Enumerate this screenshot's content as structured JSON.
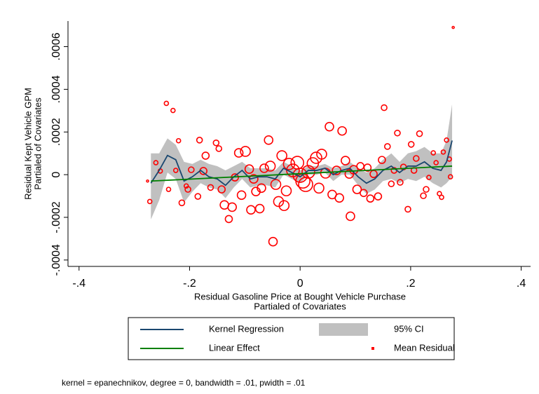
{
  "chart_data": {
    "type": "scatter",
    "x_label": [
      "Residual Gasoline Price at Bought Vehicle Purchase",
      "Partialed of Covariates"
    ],
    "y_label": [
      "Residual Kept Vehicle GPM",
      "Partialed of Covariates"
    ],
    "note": "kernel = epanechnikov, degree = 0, bandwidth = .01, pwidth = .01",
    "xlim": [
      -0.42,
      0.417
    ],
    "ylim": [
      -0.00043,
      0.00072
    ],
    "xticks": [
      {
        "value": -0.4,
        "label": "-.4"
      },
      {
        "value": -0.2,
        "label": "-.2"
      },
      0,
      {
        "value": 0.2,
        "label": ".2"
      },
      {
        "value": 0.4,
        "label": ".4"
      }
    ],
    "yticks": [
      {
        "value": -0.0004,
        "label": "-.0004"
      },
      {
        "value": -0.0002,
        "label": "-.0002"
      },
      0,
      {
        "value": 0.0002,
        "label": ".0002"
      },
      {
        "value": 0.0004,
        "label": ".0004"
      },
      {
        "value": 0.0006,
        "label": ".0006"
      }
    ],
    "ci_band": {
      "name": "95% CI",
      "color": "#c0c0c0",
      "x": [
        -0.27,
        -0.255,
        -0.24,
        -0.225,
        -0.21,
        -0.195,
        -0.18,
        -0.165,
        -0.15,
        -0.135,
        -0.12,
        -0.105,
        -0.09,
        -0.075,
        -0.06,
        -0.045,
        -0.03,
        -0.015,
        0,
        0.015,
        0.03,
        0.045,
        0.06,
        0.075,
        0.09,
        0.105,
        0.12,
        0.135,
        0.15,
        0.165,
        0.18,
        0.195,
        0.21,
        0.225,
        0.24,
        0.255,
        0.265,
        0.275
      ],
      "upper": [
        0.0001,
        0.0001,
        0.00017,
        0.00014,
        6e-05,
        5e-05,
        7e-05,
        5e-05,
        4e-05,
        2e-05,
        4e-05,
        6e-05,
        3e-05,
        3e-05,
        3e-05,
        2e-05,
        6e-05,
        4e-05,
        2e-05,
        4e-05,
        4e-05,
        5e-05,
        3e-05,
        4e-05,
        6e-05,
        3e-05,
        1e-05,
        3e-05,
        7e-05,
        0.0001,
        6e-05,
        0.0001,
        0.00011,
        0.00013,
        0.0001,
        0.0001,
        0.00016,
        0.00033
      ],
      "lower": [
        -0.00021,
        -0.00012,
        1e-05,
        -2e-05,
        -0.00013,
        -8e-05,
        -4e-05,
        -6e-05,
        -7e-05,
        -0.00011,
        -6e-05,
        -2e-05,
        -6e-05,
        -5e-05,
        -5e-05,
        -6e-05,
        0,
        -2e-05,
        -4e-05,
        0,
        0,
        1e-05,
        -3e-05,
        0,
        0,
        -5e-05,
        -9e-05,
        -7e-05,
        -3e-05,
        -2e-05,
        -4e-05,
        -2e-05,
        -3e-05,
        -1e-05,
        -4e-05,
        -6e-05,
        -4e-05,
        -1e-05
      ]
    },
    "series": [
      {
        "name": "Kernel Regression",
        "color": "#1a476f",
        "x": [
          -0.27,
          -0.255,
          -0.24,
          -0.225,
          -0.21,
          -0.195,
          -0.18,
          -0.165,
          -0.15,
          -0.135,
          -0.12,
          -0.105,
          -0.09,
          -0.075,
          -0.06,
          -0.045,
          -0.03,
          -0.015,
          0,
          0.015,
          0.03,
          0.045,
          0.06,
          0.075,
          0.09,
          0.105,
          0.12,
          0.135,
          0.15,
          0.165,
          0.18,
          0.195,
          0.21,
          0.225,
          0.24,
          0.255,
          0.265,
          0.275
        ],
        "values": [
          -4e-05,
          2e-05,
          9e-05,
          7e-05,
          -3e-05,
          -1e-05,
          2e-05,
          -1e-05,
          -2e-05,
          -5e-05,
          -1e-05,
          2e-05,
          -2e-05,
          -1e-05,
          -1e-05,
          -2e-05,
          3e-05,
          1e-05,
          -1e-05,
          2e-05,
          2e-05,
          3e-05,
          0,
          2e-05,
          3e-05,
          -1e-05,
          -4e-05,
          -2e-05,
          2e-05,
          4e-05,
          1e-05,
          4e-05,
          4e-05,
          6e-05,
          3e-05,
          2e-05,
          6e-05,
          0.00016
        ]
      },
      {
        "name": "Linear Effect",
        "color": "#008000",
        "x": [
          -0.27,
          0.275
        ],
        "values": [
          -3e-05,
          4e-05
        ]
      },
      {
        "name": "Mean Residual",
        "color": "#ff0000",
        "x": [
          -0.272,
          -0.261,
          -0.253,
          -0.242,
          -0.23,
          -0.238,
          -0.225,
          -0.22,
          -0.214,
          -0.206,
          -0.203,
          -0.197,
          -0.185,
          -0.182,
          -0.175,
          -0.171,
          -0.162,
          -0.152,
          -0.147,
          -0.142,
          -0.137,
          -0.129,
          -0.123,
          -0.118,
          -0.111,
          -0.106,
          -0.099,
          -0.092,
          -0.089,
          -0.084,
          -0.08,
          -0.073,
          -0.07,
          -0.065,
          -0.057,
          -0.054,
          -0.049,
          -0.044,
          -0.039,
          -0.033,
          -0.029,
          -0.025,
          -0.02,
          -0.013,
          -0.005,
          0,
          0.005,
          0.01,
          0.015,
          0.023,
          0.029,
          0.034,
          0.039,
          0.046,
          0.053,
          0.058,
          0.066,
          0.071,
          0.076,
          0.082,
          0.089,
          0.091,
          0.097,
          0.103,
          0.109,
          0.115,
          0.122,
          0.127,
          0.133,
          0.141,
          0.148,
          0.152,
          0.158,
          0.165,
          0.17,
          0.176,
          0.181,
          0.187,
          0.195,
          0.201,
          0.206,
          0.21,
          0.216,
          0.223,
          0.228,
          0.233,
          0.241,
          0.246,
          0.252,
          0.256,
          0.259,
          0.265,
          0.27,
          0.272,
          0.277,
          -0.276
        ],
        "values": [
          -0.000126,
          5.6e-05,
          1.7e-05,
          0.000334,
          0.000301,
          -6.9e-05,
          2e-05,
          0.000159,
          -0.000132,
          -5.3e-05,
          -6.9e-05,
          2.3e-05,
          -0.000102,
          0.000162,
          1.7e-05,
          8.9e-05,
          -6e-05,
          0.000149,
          0.000122,
          -6.9e-05,
          -0.000142,
          -0.000208,
          -0.000152,
          -1.3e-05,
          0.000102,
          -9.6e-05,
          0.000109,
          2.6e-05,
          -0.000165,
          -2e-05,
          -7.9e-05,
          -0.000159,
          -6.3e-05,
          3e-05,
          0.000162,
          4e-05,
          -0.000314,
          -4.6e-05,
          -0.000126,
          8.9e-05,
          -0.000145,
          -7.6e-05,
          5e-05,
          2e-05,
          5.6e-05,
          -3e-06,
          -3e-05,
          -4.6e-05,
          1.3e-05,
          5.3e-05,
          7.9e-05,
          -6.3e-05,
          9.6e-05,
          7e-06,
          0.000225,
          -9.3e-05,
          2e-05,
          -0.000109,
          0.000205,
          6.6e-05,
          3e-06,
          -0.000195,
          2.3e-05,
          -6.9e-05,
          4e-05,
          -8.6e-05,
          3.3e-05,
          -0.000112,
          3e-06,
          -0.000102,
          6.9e-05,
          0.000314,
          0.000132,
          -4.3e-05,
          2e-05,
          0.000195,
          -3.6e-05,
          3.6e-05,
          -0.000162,
          0.000142,
          2e-05,
          7.6e-05,
          0.000192,
          -9.9e-05,
          -6.9e-05,
          -1.3e-05,
          0.000102,
          5.6e-05,
          -8.9e-05,
          -0.000106,
          0.000106,
          0.000162,
          7.3e-05,
          -1e-05,
          0.00069,
          -3e-05
        ],
        "sizes": [
          3,
          3,
          3,
          3,
          3,
          3,
          3,
          3,
          4,
          3,
          4,
          4,
          4,
          4,
          5,
          5,
          4,
          4,
          4,
          5,
          6,
          5,
          6,
          5,
          6,
          6,
          7,
          6,
          6,
          6,
          6,
          6,
          6,
          6,
          6,
          7,
          6,
          7,
          7,
          7,
          7,
          7,
          8,
          9,
          9,
          10,
          10,
          10,
          9,
          8,
          8,
          7,
          7,
          7,
          6,
          6,
          6,
          6,
          6,
          6,
          6,
          6,
          6,
          6,
          5,
          5,
          5,
          5,
          5,
          5,
          5,
          4,
          4,
          4,
          4,
          4,
          4,
          4,
          4,
          4,
          4,
          4,
          4,
          4,
          4,
          3,
          3,
          3,
          3,
          3,
          3,
          3,
          3,
          3,
          1.5,
          1.5
        ]
      }
    ]
  }
}
